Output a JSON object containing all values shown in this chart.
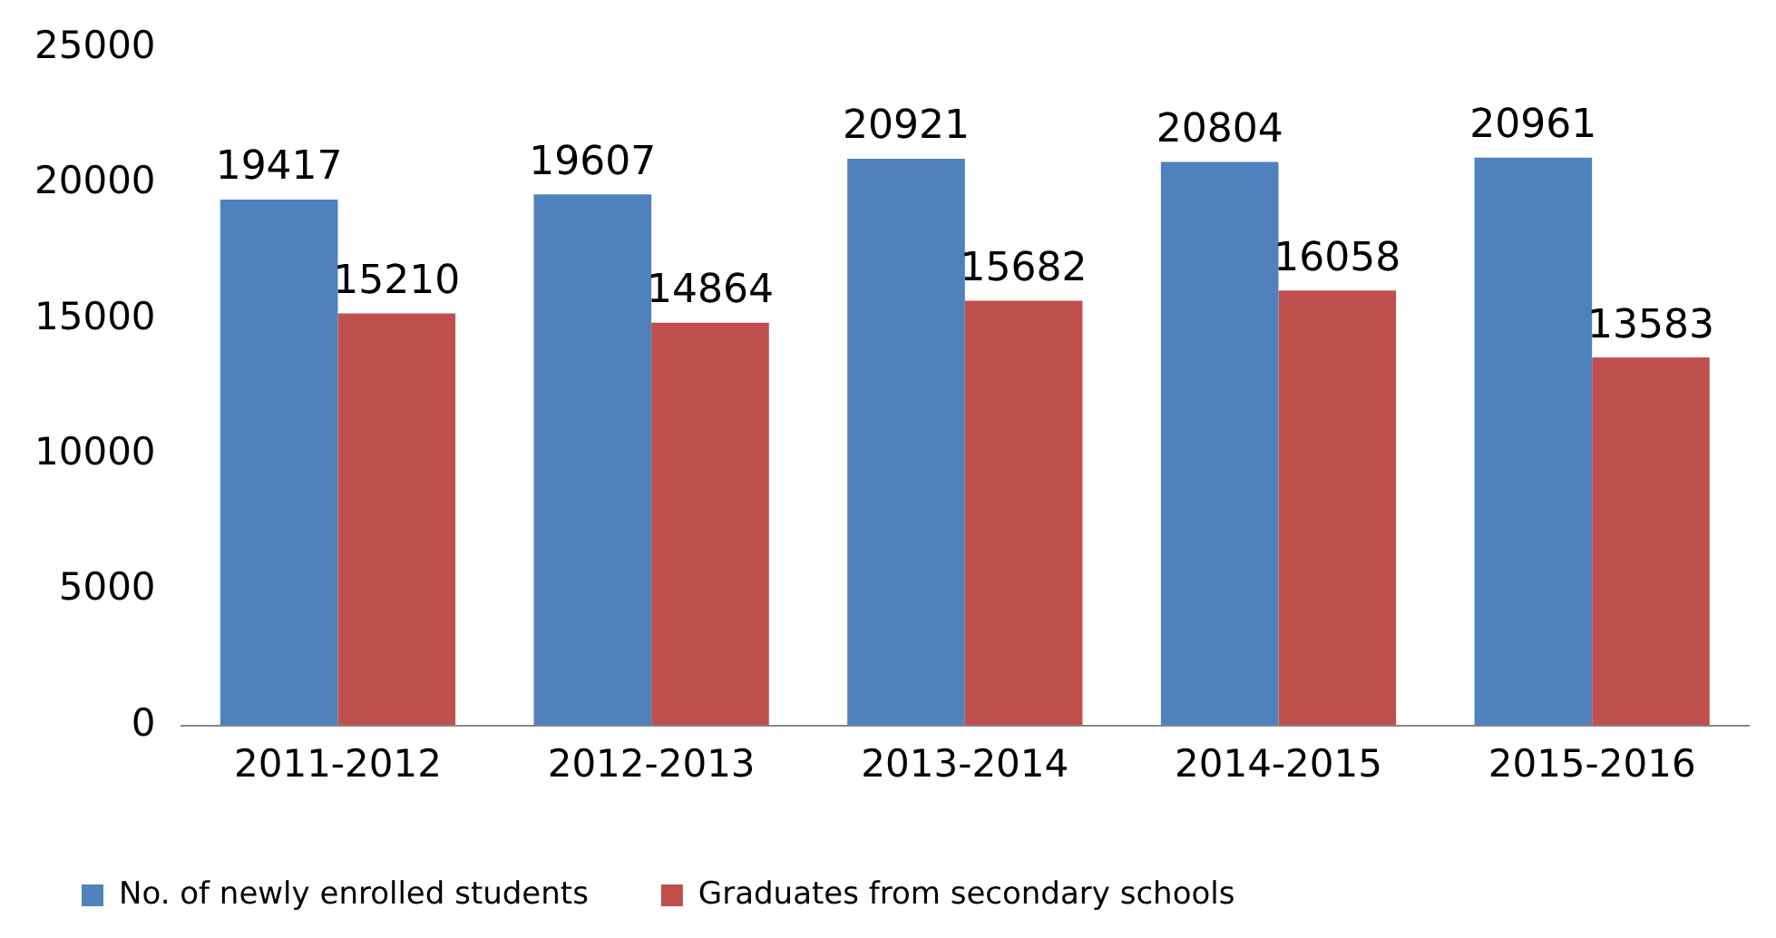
{
  "chart_data": {
    "type": "bar",
    "categories": [
      "2011-2012",
      "2012-2013",
      "2013-2014",
      "2014-2015",
      "2015-2016"
    ],
    "series": [
      {
        "name": "No. of newly enrolled students",
        "color": "#4f81bd",
        "values": [
          19417,
          19607,
          20921,
          20804,
          20961
        ]
      },
      {
        "name": "Graduates from secondary schools",
        "color": "#c0504d",
        "values": [
          15210,
          14864,
          15682,
          16058,
          13583
        ]
      }
    ],
    "ylim": [
      0,
      25000
    ],
    "yticks": [
      0,
      5000,
      10000,
      15000,
      20000,
      25000
    ],
    "grid": false,
    "legend": "bottom",
    "data_labels": true
  }
}
